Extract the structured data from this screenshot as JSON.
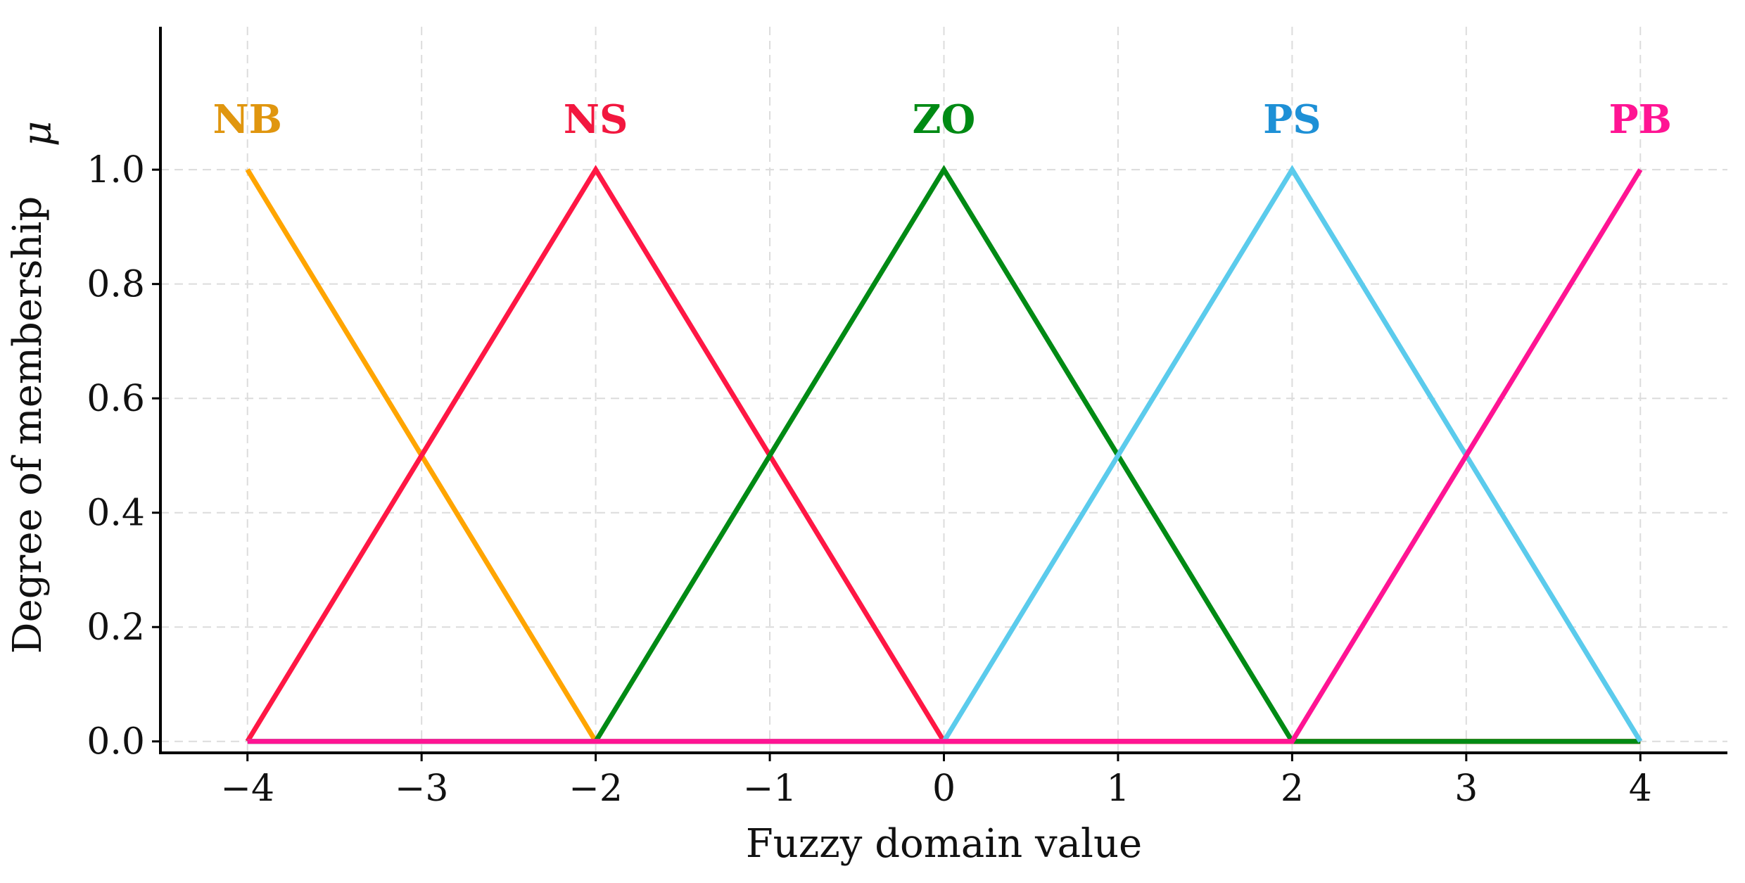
{
  "chart_data": {
    "type": "line",
    "title": "",
    "xlabel": "Fuzzy domain value",
    "ylabel": "Degree of membership",
    "ylabel_symbol": "μ",
    "xlim": [
      -4.5,
      4.5
    ],
    "ylim": [
      -0.02,
      1.25
    ],
    "grid": true,
    "legend": "none",
    "xticks": [
      -4,
      -3,
      -2,
      -1,
      0,
      1,
      2,
      3,
      4
    ],
    "xtick_labels": [
      "−4",
      "−3",
      "−2",
      "−1",
      "0",
      "1",
      "2",
      "3",
      "4"
    ],
    "yticks": [
      0.0,
      0.2,
      0.4,
      0.6,
      0.8,
      1.0
    ],
    "ytick_labels": [
      "0.0",
      "0.2",
      "0.4",
      "0.6",
      "0.8",
      "1.0"
    ],
    "series": [
      {
        "name": "NB",
        "color": "#FFA500",
        "label_color": "#E0960F",
        "x": [
          -4,
          -2,
          4
        ],
        "y": [
          1,
          0,
          0
        ]
      },
      {
        "name": "NS",
        "color": "#FF1744",
        "label_color": "#F2173F",
        "x": [
          -4,
          -2,
          0,
          4
        ],
        "y": [
          0,
          1,
          0,
          0
        ]
      },
      {
        "name": "ZO",
        "color": "#008A14",
        "label_color": "#008A14",
        "x": [
          -4,
          -2,
          0,
          2,
          4
        ],
        "y": [
          0,
          0,
          1,
          0,
          0
        ]
      },
      {
        "name": "PS",
        "color": "#5BCBEC",
        "label_color": "#1E90D6",
        "x": [
          -4,
          0,
          2,
          4
        ],
        "y": [
          0,
          0,
          1,
          0
        ]
      },
      {
        "name": "PB",
        "color": "#FF1493",
        "label_color": "#FF1493",
        "x": [
          -4,
          2,
          4
        ],
        "y": [
          0,
          0,
          1
        ]
      }
    ],
    "series_label_peaks": [
      -4,
      -2,
      0,
      2,
      4
    ]
  }
}
